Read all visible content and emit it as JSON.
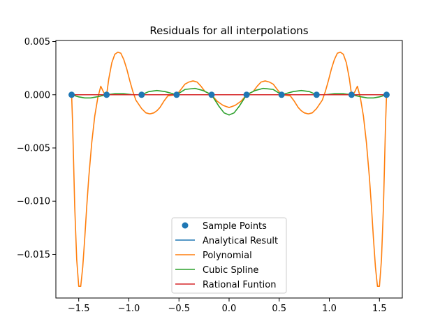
{
  "chart_data": {
    "type": "line",
    "title": "Residuals for all interpolations",
    "xlabel": "",
    "ylabel": "",
    "xlim": [
      -1.7279,
      1.7279
    ],
    "ylim": [
      -0.0191,
      0.0051
    ],
    "xticks": [
      -1.5,
      -1.0,
      -0.5,
      0.0,
      0.5,
      1.0,
      1.5
    ],
    "xtick_labels": [
      "−1.5",
      "−1.0",
      "−0.5",
      "0.0",
      "0.5",
      "1.0",
      "1.5"
    ],
    "yticks": [
      0.005,
      0.0,
      -0.005,
      -0.01,
      -0.015
    ],
    "ytick_labels": [
      "0.005",
      "0.000",
      "−0.005",
      "−0.010",
      "−0.015"
    ],
    "grid": false,
    "legend_position": "bottom-center",
    "sample_points": {
      "name": "Sample Points",
      "color": "#1f77b4",
      "x": [
        -1.5708,
        -1.2217,
        -0.8727,
        -0.5236,
        -0.1745,
        0.1745,
        0.5236,
        0.8727,
        1.2217,
        1.5708
      ],
      "y": [
        0,
        0,
        0,
        0,
        0,
        0,
        0,
        0,
        0,
        0
      ]
    },
    "series": [
      {
        "name": "Analytical Result",
        "color": "#1f77b4",
        "x": [
          -1.5708,
          1.5708
        ],
        "y": [
          0,
          0
        ]
      },
      {
        "name": "Polynomial",
        "color": "#ff7f0e",
        "x": [
          -1.5708,
          -1.56,
          -1.54,
          -1.52,
          -1.5,
          -1.48,
          -1.46,
          -1.44,
          -1.42,
          -1.4,
          -1.37,
          -1.34,
          -1.31,
          -1.28,
          -1.25,
          -1.2217,
          -1.2,
          -1.17,
          -1.14,
          -1.11,
          -1.08,
          -1.05,
          -1.02,
          -0.99,
          -0.96,
          -0.93,
          -0.8727,
          -0.83,
          -0.79,
          -0.75,
          -0.72,
          -0.69,
          -0.65,
          -0.61,
          -0.5236,
          -0.48,
          -0.44,
          -0.4,
          -0.36,
          -0.32,
          -0.28,
          -0.24,
          -0.1745,
          -0.12,
          -0.06,
          0.0,
          0.06,
          0.12,
          0.1745,
          0.24,
          0.28,
          0.32,
          0.36,
          0.4,
          0.44,
          0.48,
          0.5236,
          0.61,
          0.65,
          0.69,
          0.72,
          0.75,
          0.79,
          0.83,
          0.8727,
          0.93,
          0.96,
          0.99,
          1.02,
          1.05,
          1.08,
          1.11,
          1.14,
          1.17,
          1.2,
          1.2217,
          1.25,
          1.28,
          1.31,
          1.34,
          1.37,
          1.4,
          1.42,
          1.44,
          1.46,
          1.48,
          1.5,
          1.52,
          1.54,
          1.56,
          1.5708
        ],
        "y": [
          0,
          -0.003,
          -0.0105,
          -0.0155,
          -0.018,
          -0.018,
          -0.0162,
          -0.0135,
          -0.0105,
          -0.0078,
          -0.0045,
          -0.002,
          -0.0003,
          0.0008,
          0.0002,
          0,
          0.0015,
          0.003,
          0.0038,
          0.004,
          0.0039,
          0.0033,
          0.0024,
          0.0013,
          0.0003,
          -0.0005,
          -0.0013,
          -0.0017,
          -0.0018,
          -0.0017,
          -0.0015,
          -0.0012,
          -0.0006,
          -0.0001,
          0,
          0.0005,
          0.001,
          0.0012,
          0.0013,
          0.0012,
          0.0008,
          0.0003,
          0,
          -0.0006,
          -0.001,
          -0.0012,
          -0.001,
          -0.0006,
          0,
          0.0003,
          0.0008,
          0.0012,
          0.0013,
          0.0012,
          0.001,
          0.0005,
          0,
          -0.0001,
          -0.0006,
          -0.0012,
          -0.0015,
          -0.0017,
          -0.0018,
          -0.0017,
          -0.0013,
          -0.0005,
          0.0003,
          0.0013,
          0.0024,
          0.0033,
          0.0039,
          0.004,
          0.0038,
          0.003,
          0.0015,
          0,
          0.0002,
          0.0008,
          -0.0003,
          -0.002,
          -0.0045,
          -0.0078,
          -0.0105,
          -0.0135,
          -0.0162,
          -0.018,
          -0.018,
          -0.0155,
          -0.0105,
          -0.003,
          0
        ]
      },
      {
        "name": "Cubic Spline",
        "color": "#2ca02c",
        "x": [
          -1.5708,
          -1.5,
          -1.44,
          -1.38,
          -1.32,
          -1.2217,
          -1.14,
          -1.05,
          -0.96,
          -0.8727,
          -0.8,
          -0.72,
          -0.64,
          -0.5236,
          -0.44,
          -0.34,
          -0.26,
          -0.1745,
          -0.1,
          -0.05,
          0.0,
          0.05,
          0.1,
          0.1745,
          0.26,
          0.34,
          0.44,
          0.5236,
          0.64,
          0.72,
          0.8,
          0.8727,
          0.96,
          1.05,
          1.14,
          1.2217,
          1.32,
          1.38,
          1.44,
          1.5,
          1.5708
        ],
        "y": [
          0,
          -0.0002,
          -0.0003,
          -0.0003,
          -0.0002,
          0,
          0.0001,
          0.0001,
          0.0,
          0,
          0.0003,
          0.0004,
          0.0003,
          0,
          0.0005,
          0.0006,
          0.0004,
          0,
          -0.0011,
          -0.0017,
          -0.0019,
          -0.0017,
          -0.0011,
          0,
          0.0004,
          0.0006,
          0.0005,
          0,
          0.0003,
          0.0004,
          0.0003,
          0,
          0.0,
          0.0001,
          0.0001,
          0,
          -0.0002,
          -0.0003,
          -0.0003,
          -0.0002,
          0
        ]
      },
      {
        "name": "Rational Funtion",
        "color": "#d62728",
        "x": [
          -1.5708,
          1.5708
        ],
        "y": [
          0,
          0
        ]
      }
    ],
    "legend_entries": [
      {
        "label": "Sample Points",
        "kind": "marker",
        "color": "#1f77b4"
      },
      {
        "label": "Analytical Result",
        "kind": "line",
        "color": "#1f77b4"
      },
      {
        "label": "Polynomial",
        "kind": "line",
        "color": "#ff7f0e"
      },
      {
        "label": "Cubic Spline",
        "kind": "line",
        "color": "#2ca02c"
      },
      {
        "label": "Rational Funtion",
        "kind": "line",
        "color": "#d62728"
      }
    ]
  }
}
